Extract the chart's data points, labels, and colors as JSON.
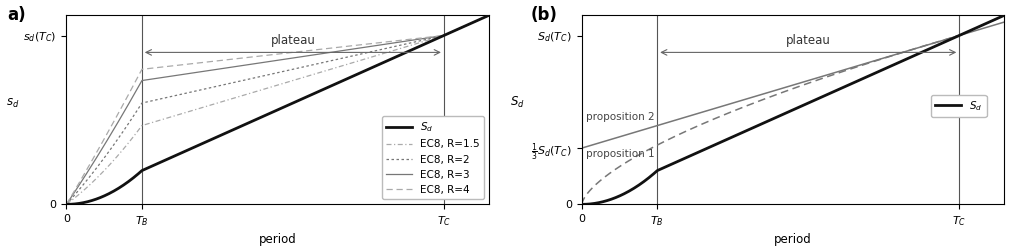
{
  "TB": 0.2,
  "TC": 1.0,
  "T_max": 1.12,
  "Sd_TC": 1.0,
  "panel_a": {
    "label": "a)",
    "ylabel": "$s_d$",
    "ytick_label": "$s_d(T_C)$",
    "xlabel": "period",
    "plateau_text": "plateau"
  },
  "panel_b": {
    "label": "(b)",
    "ylabel": "$S_d$",
    "ytick_label_top": "$S_d(T_C)$",
    "ytick_label_bot": "$\\frac{1}{3}S_d(T_C)$",
    "xlabel": "period",
    "plateau_text": "plateau"
  },
  "bg": "#ffffff",
  "black": "#111111",
  "gray1": "#aaaaaa",
  "gray2": "#777777",
  "gray3": "#999999",
  "vline_color": "#555555",
  "arrow_color": "#666666",
  "fs_label": 8.5,
  "fs_tick": 8,
  "fs_legend": 7.5,
  "fs_panel": 12
}
